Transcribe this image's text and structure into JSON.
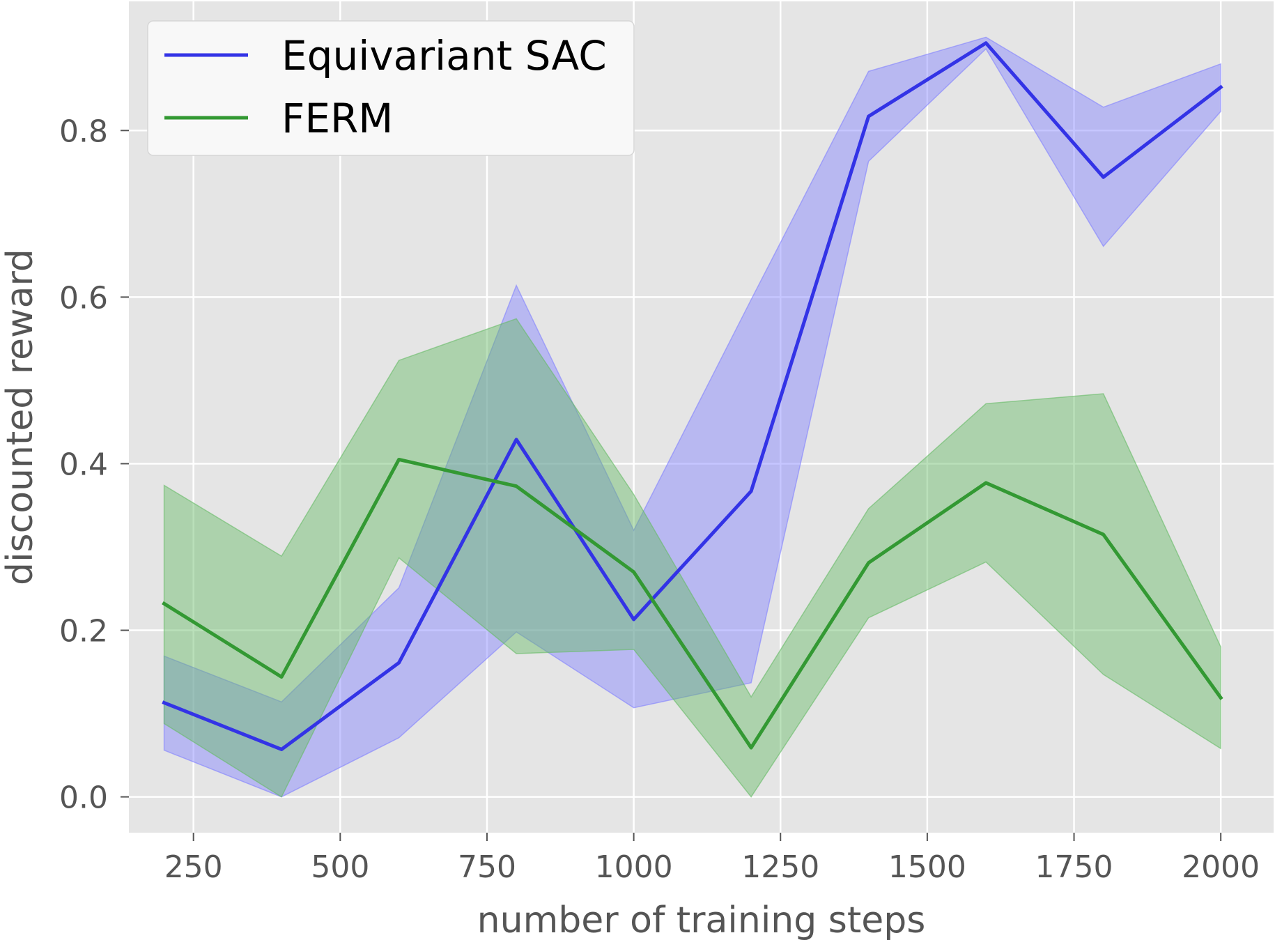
{
  "chart_data": {
    "type": "line",
    "title": "",
    "xlabel": "number of training steps",
    "ylabel": "discounted reward",
    "xlim": [
      140,
      2090
    ],
    "ylim": [
      -0.043,
      0.955
    ],
    "xticks": [
      250,
      500,
      750,
      1000,
      1250,
      1500,
      1750,
      2000
    ],
    "xtick_labels": [
      "250",
      "500",
      "750",
      "1000",
      "1250",
      "1500",
      "1750",
      "2000"
    ],
    "yticks": [
      0.0,
      0.2,
      0.4,
      0.6,
      0.8
    ],
    "ytick_labels": [
      "0.0",
      "0.2",
      "0.4",
      "0.6",
      "0.8"
    ],
    "grid": true,
    "legend_position": "top-left",
    "x": [
      200,
      400,
      600,
      800,
      1000,
      1200,
      1400,
      1600,
      1800,
      2000
    ],
    "series": [
      {
        "name": "Equivariant SAC",
        "color": "#3333e6",
        "band_color": "#8080ff",
        "values": [
          0.113,
          0.057,
          0.161,
          0.429,
          0.213,
          0.367,
          0.817,
          0.905,
          0.744,
          0.852
        ],
        "lower": [
          0.056,
          0.0,
          0.071,
          0.198,
          0.107,
          0.137,
          0.763,
          0.898,
          0.661,
          0.823
        ],
        "upper": [
          0.169,
          0.114,
          0.251,
          0.614,
          0.32,
          0.597,
          0.871,
          0.912,
          0.828,
          0.88
        ]
      },
      {
        "name": "FERM",
        "color": "#339933",
        "band_color": "#66bb66",
        "values": [
          0.232,
          0.144,
          0.405,
          0.373,
          0.27,
          0.059,
          0.281,
          0.377,
          0.315,
          0.119
        ],
        "lower": [
          0.088,
          0.0,
          0.287,
          0.172,
          0.177,
          0.0,
          0.215,
          0.282,
          0.147,
          0.058
        ],
        "upper": [
          0.374,
          0.289,
          0.524,
          0.574,
          0.363,
          0.12,
          0.346,
          0.472,
          0.484,
          0.18
        ]
      }
    ]
  }
}
